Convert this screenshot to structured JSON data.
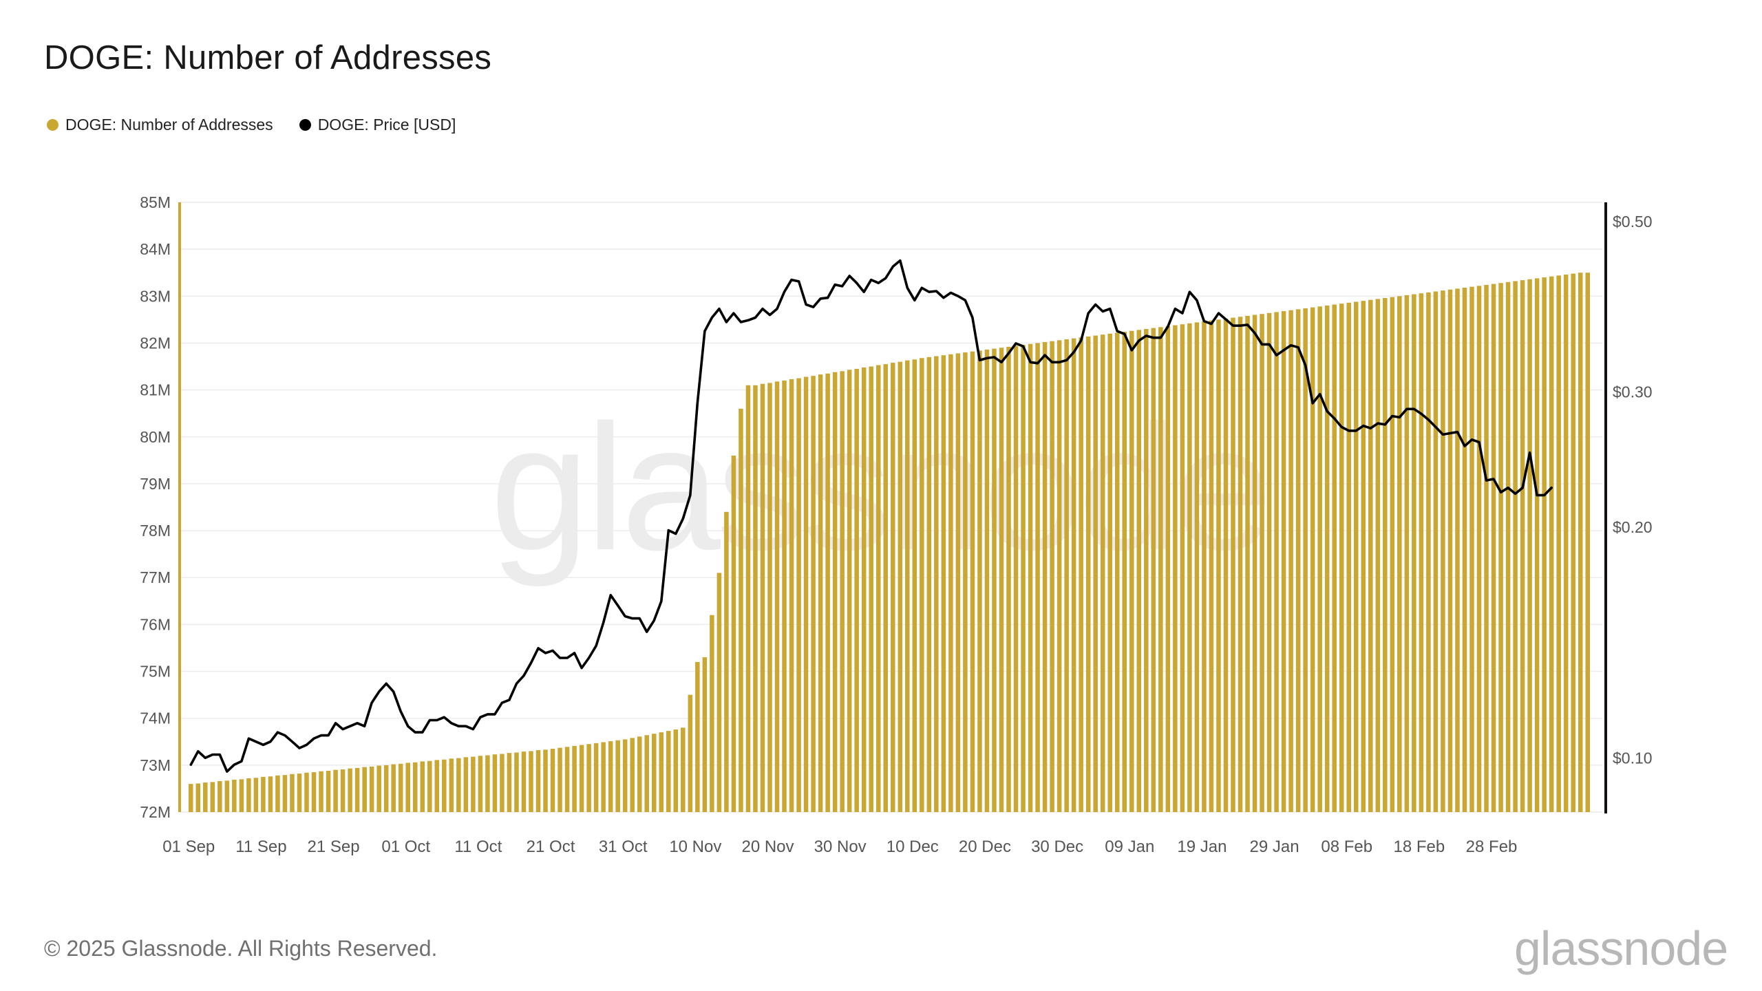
{
  "title": "DOGE: Number of Addresses",
  "legend": [
    {
      "label": "DOGE: Number of Addresses",
      "color": "#c9a732"
    },
    {
      "label": "DOGE: Price [USD]",
      "color": "#000000"
    }
  ],
  "footer": "© 2025 Glassnode. All Rights Reserved.",
  "brand": "glassnode",
  "watermark": "glassnode",
  "colors": {
    "bar": "#c9a732",
    "line": "#000000",
    "grid": "#ececec",
    "axis_text": "#555555"
  },
  "chart_data": {
    "type": "bar+line",
    "title": "DOGE: Number of Addresses",
    "x_tick_labels": [
      "01 Sep",
      "11 Sep",
      "21 Sep",
      "01 Oct",
      "11 Oct",
      "21 Oct",
      "31 Oct",
      "10 Nov",
      "20 Nov",
      "30 Nov",
      "10 Dec",
      "20 Dec",
      "30 Dec",
      "09 Jan",
      "19 Jan",
      "29 Jan",
      "08 Feb",
      "18 Feb",
      "28 Feb"
    ],
    "y_left": {
      "label": "",
      "ticks": [
        "72M",
        "73M",
        "74M",
        "75M",
        "76M",
        "77M",
        "78M",
        "79M",
        "80M",
        "81M",
        "82M",
        "83M",
        "84M",
        "85M"
      ],
      "range": [
        72,
        85
      ],
      "unit": "M"
    },
    "y_right": {
      "label": "",
      "scale": "log",
      "ticks": [
        "$0.10",
        "$0.20",
        "$0.30",
        "$0.50"
      ],
      "tick_values": [
        0.1,
        0.2,
        0.3,
        0.5
      ],
      "range": [
        0.085,
        0.53
      ]
    },
    "series": [
      {
        "name": "DOGE: Number of Addresses",
        "type": "bar",
        "axis": "left",
        "unit": "M",
        "values": [
          72.6,
          72.61,
          72.63,
          72.64,
          72.66,
          72.67,
          72.69,
          72.7,
          72.72,
          72.73,
          72.75,
          72.76,
          72.78,
          72.79,
          72.81,
          72.82,
          72.84,
          72.85,
          72.87,
          72.88,
          72.9,
          72.91,
          72.93,
          72.94,
          72.96,
          72.97,
          72.99,
          73.0,
          73.02,
          73.03,
          73.05,
          73.06,
          73.08,
          73.09,
          73.11,
          73.12,
          73.14,
          73.15,
          73.17,
          73.18,
          73.2,
          73.21,
          73.23,
          73.24,
          73.26,
          73.27,
          73.29,
          73.3,
          73.32,
          73.33,
          73.35,
          73.37,
          73.39,
          73.41,
          73.43,
          73.45,
          73.47,
          73.49,
          73.51,
          73.53,
          73.55,
          73.58,
          73.61,
          73.64,
          73.67,
          73.7,
          73.73,
          73.76,
          73.8,
          74.5,
          75.2,
          75.3,
          76.2,
          77.1,
          78.4,
          79.6,
          80.6,
          81.1,
          81.1,
          81.13,
          81.15,
          81.18,
          81.2,
          81.23,
          81.25,
          81.28,
          81.3,
          81.33,
          81.35,
          81.38,
          81.4,
          81.43,
          81.45,
          81.48,
          81.5,
          81.53,
          81.55,
          81.58,
          81.6,
          81.63,
          81.65,
          81.68,
          81.7,
          81.72,
          81.74,
          81.76,
          81.78,
          81.8,
          81.82,
          81.84,
          81.86,
          81.88,
          81.9,
          81.92,
          81.94,
          81.96,
          81.98,
          82.0,
          82.02,
          82.04,
          82.06,
          82.08,
          82.1,
          82.12,
          82.14,
          82.16,
          82.18,
          82.2,
          82.22,
          82.24,
          82.26,
          82.28,
          82.3,
          82.32,
          82.34,
          82.36,
          82.38,
          82.4,
          82.42,
          82.44,
          82.46,
          82.48,
          82.5,
          82.52,
          82.54,
          82.56,
          82.58,
          82.6,
          82.62,
          82.64,
          82.66,
          82.68,
          82.7,
          82.72,
          82.74,
          82.76,
          82.78,
          82.8,
          82.82,
          82.84,
          82.86,
          82.88,
          82.9,
          82.92,
          82.94,
          82.96,
          82.98,
          83.0,
          83.02,
          83.04,
          83.06,
          83.08,
          83.1,
          83.12,
          83.14,
          83.16,
          83.18,
          83.2,
          83.22,
          83.24,
          83.26,
          83.28,
          83.3,
          83.32,
          83.34,
          83.36,
          83.38,
          83.4,
          83.42,
          83.44,
          83.46,
          83.48,
          83.5,
          83.5
        ]
      },
      {
        "name": "DOGE: Price [USD]",
        "type": "line",
        "axis": "right",
        "values": [
          0.098,
          0.102,
          0.1,
          0.101,
          0.101,
          0.096,
          0.098,
          0.099,
          0.106,
          0.105,
          0.104,
          0.105,
          0.108,
          0.107,
          0.105,
          0.103,
          0.104,
          0.106,
          0.107,
          0.107,
          0.111,
          0.109,
          0.11,
          0.111,
          0.11,
          0.118,
          0.122,
          0.125,
          0.122,
          0.115,
          0.11,
          0.108,
          0.108,
          0.112,
          0.112,
          0.113,
          0.111,
          0.11,
          0.11,
          0.109,
          0.113,
          0.114,
          0.114,
          0.118,
          0.119,
          0.125,
          0.128,
          0.133,
          0.139,
          0.137,
          0.138,
          0.135,
          0.135,
          0.137,
          0.131,
          0.135,
          0.14,
          0.15,
          0.163,
          0.158,
          0.153,
          0.152,
          0.152,
          0.146,
          0.151,
          0.16,
          0.198,
          0.196,
          0.205,
          0.22,
          0.29,
          0.36,
          0.375,
          0.385,
          0.37,
          0.38,
          0.37,
          0.372,
          0.375,
          0.385,
          0.378,
          0.385,
          0.405,
          0.42,
          0.418,
          0.39,
          0.387,
          0.397,
          0.398,
          0.414,
          0.412,
          0.425,
          0.416,
          0.405,
          0.42,
          0.416,
          0.422,
          0.437,
          0.445,
          0.41,
          0.395,
          0.41,
          0.405,
          0.406,
          0.398,
          0.404,
          0.4,
          0.395,
          0.375,
          0.33,
          0.332,
          0.333,
          0.328,
          0.337,
          0.347,
          0.344,
          0.328,
          0.327,
          0.335,
          0.328,
          0.328,
          0.33,
          0.338,
          0.35,
          0.38,
          0.39,
          0.382,
          0.385,
          0.36,
          0.357,
          0.34,
          0.35,
          0.355,
          0.353,
          0.353,
          0.365,
          0.385,
          0.38,
          0.405,
          0.395,
          0.371,
          0.368,
          0.38,
          0.373,
          0.366,
          0.366,
          0.367,
          0.358,
          0.346,
          0.346,
          0.335,
          0.34,
          0.345,
          0.343,
          0.325,
          0.29,
          0.298,
          0.283,
          0.277,
          0.27,
          0.267,
          0.267,
          0.271,
          0.269,
          0.273,
          0.272,
          0.279,
          0.278,
          0.285,
          0.285,
          0.281,
          0.276,
          0.27,
          0.264,
          0.265,
          0.266,
          0.255,
          0.26,
          0.258,
          0.23,
          0.231,
          0.222,
          0.225,
          0.221,
          0.225,
          0.25,
          0.22,
          0.22,
          0.225
        ]
      }
    ],
    "grid": true,
    "legend_position": "top-left"
  }
}
